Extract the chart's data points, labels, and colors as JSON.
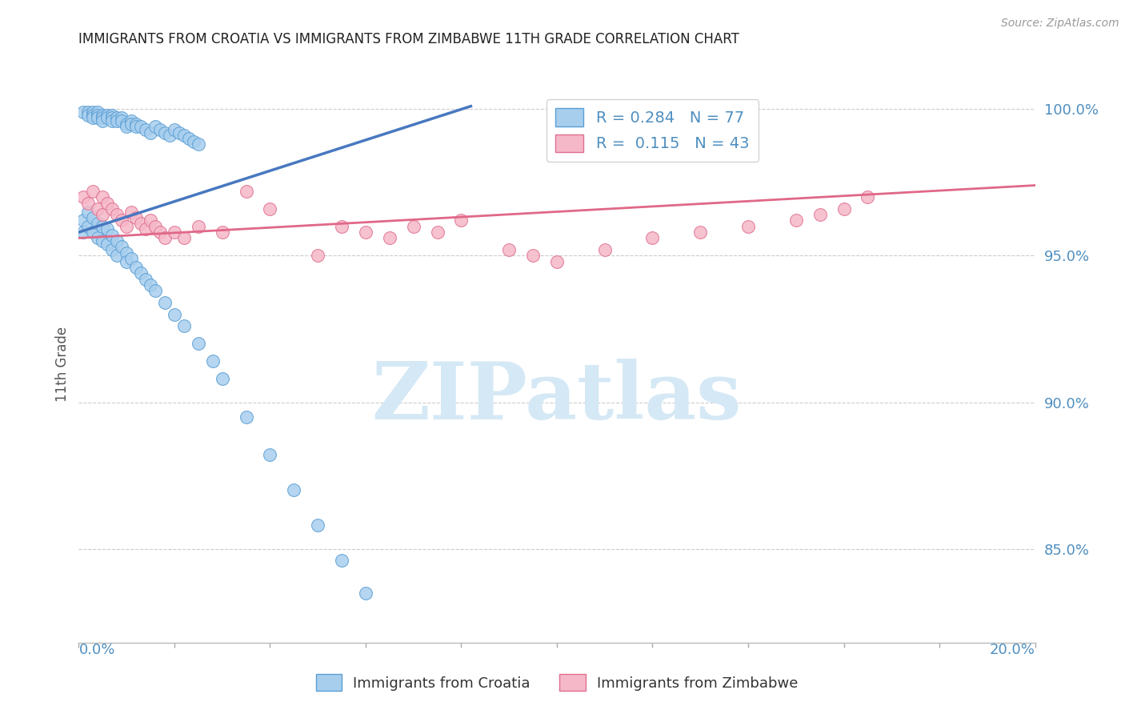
{
  "title": "IMMIGRANTS FROM CROATIA VS IMMIGRANTS FROM ZIMBABWE 11TH GRADE CORRELATION CHART",
  "source": "Source: ZipAtlas.com",
  "ylabel": "11th Grade",
  "ylabel_right_ticks": [
    "100.0%",
    "95.0%",
    "90.0%",
    "85.0%"
  ],
  "ylabel_right_vals": [
    1.0,
    0.95,
    0.9,
    0.85
  ],
  "xmin": 0.0,
  "xmax": 0.2,
  "ymin": 0.818,
  "ymax": 1.008,
  "legend_croatia": "Immigrants from Croatia",
  "legend_zimbabwe": "Immigrants from Zimbabwe",
  "R_croatia": 0.284,
  "N_croatia": 77,
  "R_zimbabwe": 0.115,
  "N_zimbabwe": 43,
  "croatia_color": "#A8CEEE",
  "croatia_edge": "#5B9FD4",
  "zimbabwe_color": "#F5B8C8",
  "zimbabwe_edge": "#E07090",
  "trendline_croatia_color": "#4878C0",
  "trendline_zimbabwe_color": "#E06888",
  "watermark_text": "ZIPatlas",
  "watermark_color": "#D5E8F5",
  "title_fontsize": 12,
  "source_fontsize": 10,
  "axis_label_color": "#4F8FC0",
  "tick_label_color": "#4F8FC0",
  "scatter_size": 130,
  "croatia_x": [
    0.001,
    0.002,
    0.002,
    0.003,
    0.003,
    0.003,
    0.004,
    0.004,
    0.004,
    0.005,
    0.005,
    0.005,
    0.006,
    0.006,
    0.007,
    0.007,
    0.007,
    0.008,
    0.008,
    0.009,
    0.009,
    0.01,
    0.01,
    0.011,
    0.011,
    0.012,
    0.012,
    0.013,
    0.014,
    0.015,
    0.016,
    0.017,
    0.018,
    0.019,
    0.02,
    0.021,
    0.022,
    0.023,
    0.024,
    0.025,
    0.001,
    0.001,
    0.002,
    0.002,
    0.003,
    0.003,
    0.004,
    0.004,
    0.005,
    0.005,
    0.006,
    0.006,
    0.007,
    0.007,
    0.008,
    0.008,
    0.009,
    0.01,
    0.01,
    0.011,
    0.012,
    0.013,
    0.014,
    0.015,
    0.016,
    0.018,
    0.02,
    0.022,
    0.025,
    0.028,
    0.03,
    0.035,
    0.04,
    0.045,
    0.05,
    0.055,
    0.06
  ],
  "croatia_y": [
    0.999,
    0.999,
    0.998,
    0.999,
    0.998,
    0.997,
    0.999,
    0.998,
    0.997,
    0.998,
    0.997,
    0.996,
    0.998,
    0.997,
    0.998,
    0.997,
    0.996,
    0.997,
    0.996,
    0.997,
    0.996,
    0.995,
    0.994,
    0.996,
    0.995,
    0.995,
    0.994,
    0.994,
    0.993,
    0.992,
    0.994,
    0.993,
    0.992,
    0.991,
    0.993,
    0.992,
    0.991,
    0.99,
    0.989,
    0.988,
    0.962,
    0.958,
    0.965,
    0.96,
    0.963,
    0.958,
    0.961,
    0.956,
    0.96,
    0.955,
    0.959,
    0.954,
    0.957,
    0.952,
    0.955,
    0.95,
    0.953,
    0.951,
    0.948,
    0.949,
    0.946,
    0.944,
    0.942,
    0.94,
    0.938,
    0.934,
    0.93,
    0.926,
    0.92,
    0.914,
    0.908,
    0.895,
    0.882,
    0.87,
    0.858,
    0.846,
    0.835
  ],
  "zimbabwe_x": [
    0.001,
    0.002,
    0.003,
    0.004,
    0.005,
    0.005,
    0.006,
    0.007,
    0.008,
    0.009,
    0.01,
    0.011,
    0.012,
    0.013,
    0.014,
    0.015,
    0.016,
    0.017,
    0.018,
    0.02,
    0.022,
    0.025,
    0.03,
    0.035,
    0.04,
    0.05,
    0.055,
    0.06,
    0.065,
    0.07,
    0.075,
    0.08,
    0.09,
    0.095,
    0.1,
    0.11,
    0.12,
    0.13,
    0.14,
    0.15,
    0.155,
    0.16,
    0.165
  ],
  "zimbabwe_y": [
    0.97,
    0.968,
    0.972,
    0.966,
    0.97,
    0.964,
    0.968,
    0.966,
    0.964,
    0.962,
    0.96,
    0.965,
    0.963,
    0.961,
    0.959,
    0.962,
    0.96,
    0.958,
    0.956,
    0.958,
    0.956,
    0.96,
    0.958,
    0.972,
    0.966,
    0.95,
    0.96,
    0.958,
    0.956,
    0.96,
    0.958,
    0.962,
    0.952,
    0.95,
    0.948,
    0.952,
    0.956,
    0.958,
    0.96,
    0.962,
    0.964,
    0.966,
    0.97
  ],
  "trendline_croatia_x0": 0.0,
  "trendline_croatia_y0": 0.958,
  "trendline_croatia_x1": 0.082,
  "trendline_croatia_y1": 1.001,
  "trendline_zimbabwe_x0": 0.0,
  "trendline_zimbabwe_y0": 0.956,
  "trendline_zimbabwe_x1": 0.2,
  "trendline_zimbabwe_y1": 0.974
}
